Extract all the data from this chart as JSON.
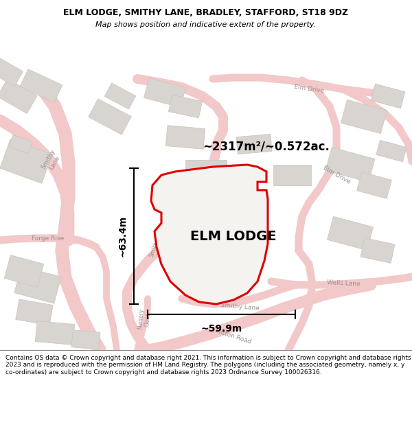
{
  "title_line1": "ELM LODGE, SMITHY LANE, BRADLEY, STAFFORD, ST18 9DZ",
  "title_line2": "Map shows position and indicative extent of the property.",
  "property_label": "ELM LODGE",
  "area_label": "~2317m²/~0.572ac.",
  "dim_vertical": "~63.4m",
  "dim_horizontal": "~59.9m",
  "footer_text": "Contains OS data © Crown copyright and database right 2021. This information is subject to Crown copyright and database rights 2023 and is reproduced with the permission of HM Land Registry. The polygons (including the associated geometry, namely x, y co-ordinates) are subject to Crown copyright and database rights 2023 Ordnance Survey 100026316.",
  "map_bg": "#f5f3f0",
  "plot_fill": "#f5f3f0",
  "plot_border": "#dd0000",
  "road_color": "#f2c8c8",
  "road_outline": "#e8b0b0",
  "building_color": "#d8d4d0",
  "building_outline": "#c8c4c0",
  "footer_bg": "#ffffff",
  "title_bg": "#ffffff",
  "label_color": "#999090",
  "dim_color": "#111111"
}
